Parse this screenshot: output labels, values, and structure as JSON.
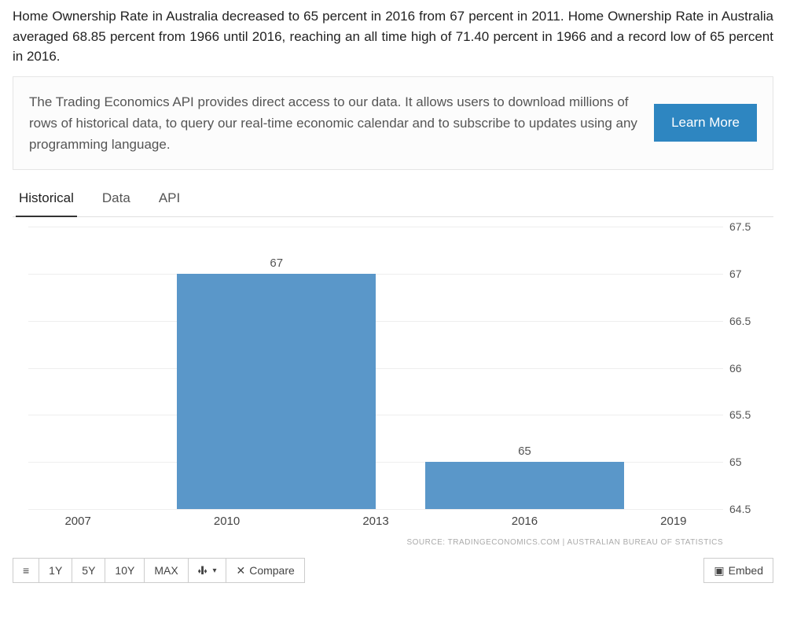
{
  "intro": "Home Ownership Rate in Australia decreased to 65 percent in 2016 from 67 percent in 2011. Home Ownership Rate in Australia averaged 68.85 percent from 1966 until 2016, reaching an all time high of 71.40 percent in 1966 and a record low of 65 percent in 2016.",
  "promo": {
    "text": "The Trading Economics API provides direct access to our data. It allows users to download millions of rows of historical data, to query our real-time economic calendar and to subscribe to updates using any programming language.",
    "cta": "Learn More"
  },
  "tabs": [
    {
      "label": "Historical",
      "active": true
    },
    {
      "label": "Data",
      "active": false
    },
    {
      "label": "API",
      "active": false
    }
  ],
  "chart": {
    "type": "bar",
    "ymin": 64.5,
    "ymax": 67.5,
    "yticks": [
      64.5,
      65,
      65.5,
      66,
      66.5,
      67,
      67.5
    ],
    "xmin": 2006,
    "xmax": 2020,
    "xticks": [
      2007,
      2010,
      2013,
      2016,
      2019
    ],
    "bars": [
      {
        "x_start": 2009,
        "x_end": 2013,
        "value": 67,
        "label": "67"
      },
      {
        "x_start": 2014,
        "x_end": 2018,
        "value": 65,
        "label": "65"
      }
    ],
    "bar_color": "#5a97c9",
    "grid_color": "#eeeeee",
    "label_color": "#555555",
    "background": "#ffffff",
    "source": "SOURCE: TRADINGECONOMICS.COM | AUSTRALIAN BUREAU OF STATISTICS"
  },
  "toolbar": {
    "list_icon": "≡",
    "ranges": [
      "1Y",
      "5Y",
      "10Y",
      "MAX"
    ],
    "chart_type_icon": "⬪❙⬪",
    "compare_icon": "✕",
    "compare_label": "Compare",
    "embed_icon": "▣",
    "embed_label": "Embed"
  }
}
